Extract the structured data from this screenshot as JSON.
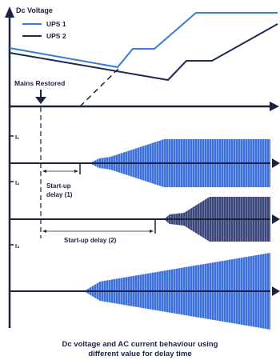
{
  "diagram": {
    "y_axis_label": "Dc Voltage",
    "legend": [
      {
        "name": "UPS 1",
        "color": "#3a7bd5"
      },
      {
        "name": "UPS 2",
        "color": "#1f2a55"
      }
    ],
    "event_label": "Mains Restored",
    "current_labels": [
      "I₁",
      "I₂",
      "I₃"
    ],
    "delay_labels": {
      "delay1_line1": "Start-up",
      "delay1_line2": "delay (1)",
      "delay2": "Start-up delay (2)"
    },
    "caption_line1": "Dc voltage and AC current behaviour using",
    "caption_line2": "different value for delay time"
  },
  "colors": {
    "axis": "#1c2340",
    "ups1": "#3a7bd5",
    "ups2": "#1f2a55",
    "current_blue": "#3d6fd8",
    "current_dark": "#3c4778"
  }
}
